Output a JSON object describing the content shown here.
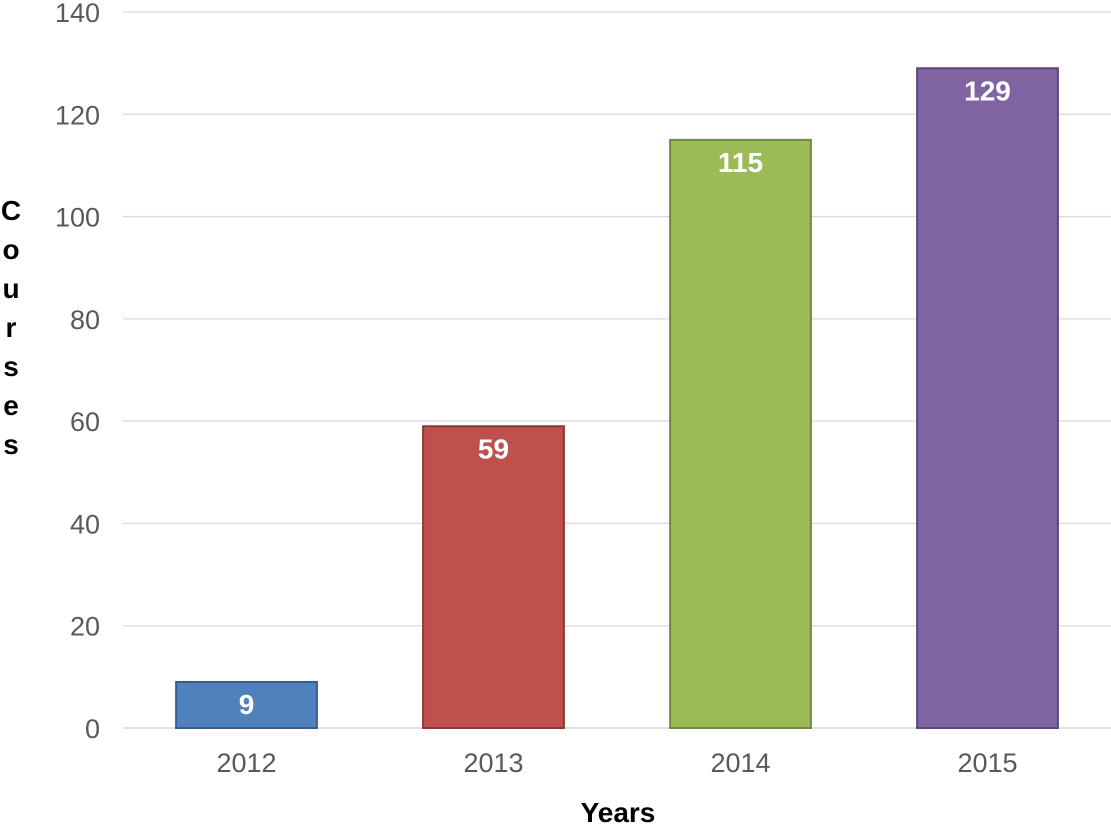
{
  "chart_data": {
    "type": "bar",
    "categories": [
      "2012",
      "2013",
      "2014",
      "2015"
    ],
    "values": [
      9,
      59,
      115,
      129
    ],
    "data_labels": [
      "9",
      "59",
      "115",
      "129"
    ],
    "colors": [
      "#4f81bd",
      "#c0504d",
      "#9bbb59",
      "#8064a2"
    ],
    "border_colors": [
      "#385d8a",
      "#8c3836",
      "#71893f",
      "#5c4776"
    ],
    "title": "",
    "xlabel": "Years",
    "ylabel": "Courses",
    "ylim": [
      0,
      140
    ],
    "yticks": [
      0,
      20,
      40,
      60,
      80,
      100,
      120,
      140
    ],
    "ytick_labels": [
      "0",
      "20",
      "40",
      "60",
      "80",
      "100",
      "120",
      "140"
    ],
    "grid": true,
    "legend": "none"
  }
}
